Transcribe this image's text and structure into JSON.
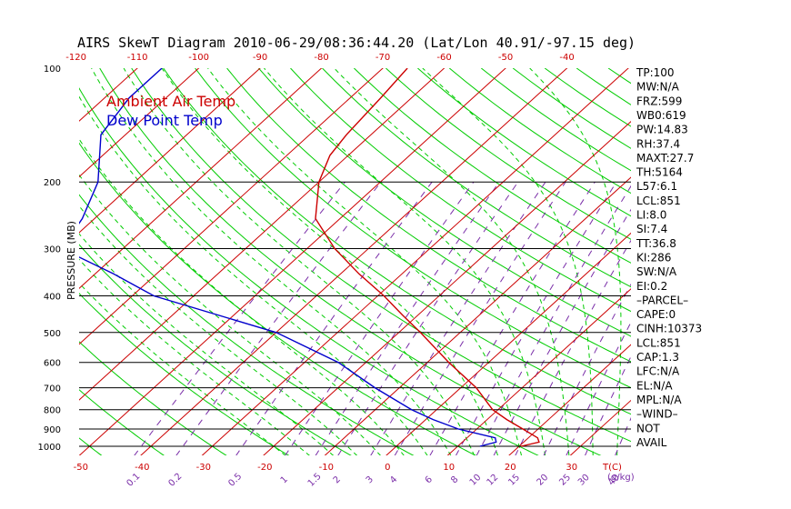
{
  "chart_data": {
    "type": "line",
    "title": "AIRS SkewT Diagram 2010-06-29/08:36:44.20 (Lat/Lon 40.91/-97.15 deg)",
    "ylabel": "PRESSURE (MB)",
    "y_scale": "log",
    "ylim": [
      1000,
      100
    ],
    "pressure_ticks": [
      100,
      200,
      300,
      400,
      500,
      600,
      700,
      800,
      900,
      1000
    ],
    "bottom_temp_ticks": [
      -50,
      -40,
      -30,
      -20,
      -10,
      0,
      10,
      20,
      30
    ],
    "bottom_temp_unit": "T(C)",
    "top_temp_ticks": [
      -120,
      -110,
      -100,
      -90,
      -80,
      -70,
      -60,
      -50,
      -40
    ],
    "mixing_ratio_ticks": [
      "0.1",
      "0.2",
      "0.5",
      "1",
      "1.5",
      "2",
      "3",
      "4",
      "6",
      "8",
      "10",
      "12",
      "15",
      "20",
      "25",
      "30",
      "40"
    ],
    "mixing_ratio_unit": "(g/kg)",
    "series": [
      {
        "name": "Ambient Air Temp",
        "color": "#cc0000",
        "pressure": [
          1000,
          975,
          950,
          900,
          850,
          800,
          700,
          600,
          500,
          450,
          400,
          350,
          300,
          250,
          200,
          170,
          150,
          120,
          100
        ],
        "temperature": [
          20.3,
          22.5,
          21.5,
          17.5,
          13.2,
          9.1,
          2.5,
          -6.5,
          -16.5,
          -22.5,
          -29,
          -37,
          -45.5,
          -54,
          -60,
          -63,
          -64,
          -65,
          -66
        ]
      },
      {
        "name": "Dew Point Temp",
        "color": "#0000cc",
        "pressure": [
          1000,
          975,
          950,
          900,
          850,
          800,
          700,
          600,
          500,
          400,
          350,
          300,
          250,
          200,
          150,
          120,
          100
        ],
        "temperature": [
          13.6,
          15.5,
          14.6,
          7.0,
          1.2,
          -4.1,
          -14.0,
          -24.5,
          -40,
          -66.5,
          -77,
          -90,
          -92,
          -96,
          -104,
          -106,
          -106
        ]
      }
    ]
  },
  "stats": [
    "TP:100",
    "MW:N/A",
    "FRZ:599",
    "WB0:619",
    "PW:14.83",
    "RH:37.4",
    "MAXT:27.7",
    "TH:5164",
    "L57:6.1",
    "LCL:851",
    "LI:8.0",
    "SI:7.4",
    "TT:36.8",
    "KI:286",
    "SW:N/A",
    "EI:0.2",
    "–PARCEL–",
    "CAPE:0",
    "CINH:10373",
    "LCL:851",
    "CAP:1.3",
    "LFC:N/A",
    "EL:N/A",
    "MPL:N/A",
    "–WIND–",
    "NOT",
    "AVAIL"
  ],
  "colors": {
    "isotherm": "#cc0000",
    "dry_adiabat": "#00cc00",
    "moist_adiabat": "#00cc00",
    "mixing_ratio": "#7a2ea8",
    "isobar": "#000000"
  }
}
